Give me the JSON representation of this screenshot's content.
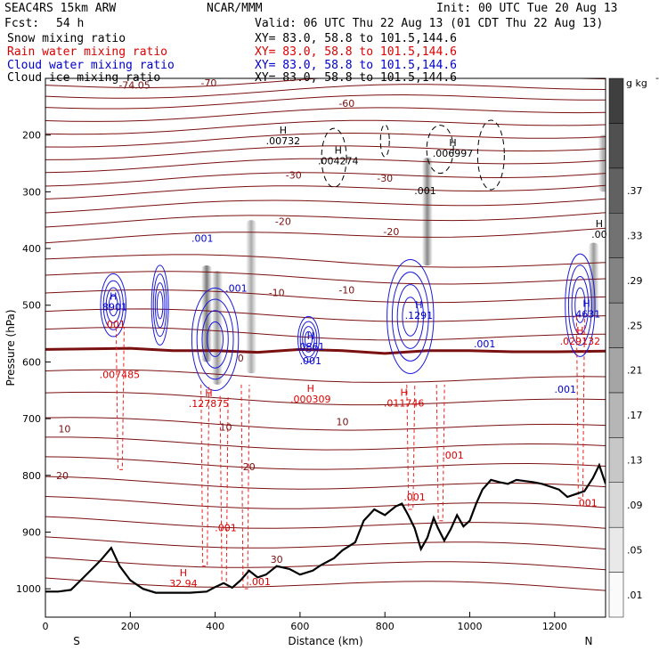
{
  "header": {
    "model": "SEAC4RS 15km ARW",
    "center": "NCAR/MMM",
    "init": "Init: 00 UTC Tue 20 Aug 13",
    "fcst_label": "Fcst:",
    "fcst_value": "54 h",
    "valid": "Valid: 06 UTC Thu 22 Aug 13 (01 CDT Thu 22 Aug 13)",
    "fields": [
      {
        "name": "Snow mixing ratio",
        "xy": "XY=  83.0, 58.8 to 101.5,144.6",
        "color": "#000000"
      },
      {
        "name": "Rain water mixing ratio",
        "xy": "XY=  83.0, 58.8 to 101.5,144.6",
        "color": "#dd0000"
      },
      {
        "name": "Cloud water mixing ratio",
        "xy": "XY=  83.0, 58.8 to 101.5,144.6",
        "color": "#0000cc"
      },
      {
        "name": "Cloud ice mixing ratio",
        "xy": "XY=  83.0, 58.8 to 101.5,144.6",
        "color": "#000000"
      }
    ]
  },
  "chart_data": {
    "type": "cross-section",
    "xlabel": "Distance (km)",
    "ylabel": "Pressure (hPa)",
    "xlim": [
      0,
      1320
    ],
    "ylim": [
      1050,
      100
    ],
    "xticks": [
      0,
      200,
      400,
      600,
      800,
      1000,
      1200
    ],
    "yticks": [
      1000,
      900,
      800,
      700,
      600,
      500,
      400,
      300,
      200
    ],
    "x_end_labels": {
      "left": "S",
      "right": "N"
    },
    "colorbar": {
      "unit": "g kg",
      "unit_exp": "-1",
      "ticks": [
        ".01",
        ".05",
        ".09",
        ".13",
        ".17",
        ".21",
        ".25",
        ".29",
        ".33",
        ".37"
      ]
    },
    "colors": {
      "theta": "#7a1010",
      "rain": "#ee2020",
      "cloud": "#1a1add",
      "ice": "#000000",
      "terrain": "#000000"
    },
    "temperature_labels": [
      {
        "text": "-74.05",
        "x": 210,
        "p": 112
      },
      {
        "text": "-70",
        "x": 385,
        "p": 108
      },
      {
        "text": "-60",
        "x": 710,
        "p": 144
      },
      {
        "text": "-30",
        "x": 585,
        "p": 270
      },
      {
        "text": "-30",
        "x": 800,
        "p": 276
      },
      {
        "text": "-20",
        "x": 560,
        "p": 352
      },
      {
        "text": "-20",
        "x": 815,
        "p": 370
      },
      {
        "text": "-10",
        "x": 545,
        "p": 478
      },
      {
        "text": "-10",
        "x": 710,
        "p": 473
      },
      {
        "text": "0",
        "x": 460,
        "p": 593
      },
      {
        "text": "10",
        "x": 45,
        "p": 718
      },
      {
        "text": "10",
        "x": 425,
        "p": 715
      },
      {
        "text": "10",
        "x": 700,
        "p": 705
      },
      {
        "text": "20",
        "x": 40,
        "p": 800
      },
      {
        "text": "20",
        "x": 480,
        "p": 785
      },
      {
        "text": "30",
        "x": 545,
        "p": 948
      }
    ],
    "extrema_labels": [
      {
        "symbol": "H",
        "value": ".00732",
        "x": 560,
        "p": 210,
        "color": "#000000"
      },
      {
        "symbol": "H",
        "value": ".004274",
        "x": 690,
        "p": 245,
        "color": "#000000"
      },
      {
        "symbol": "H",
        "value": ".006997",
        "x": 960,
        "p": 232,
        "color": "#000000"
      },
      {
        "symbol": "",
        "value": ".001",
        "x": 895,
        "p": 298,
        "color": "#000000"
      },
      {
        "symbol": "H",
        "value": ".00",
        "x": 1305,
        "p": 375,
        "color": "#000000"
      },
      {
        "symbol": "",
        "value": ".001",
        "x": 370,
        "p": 382,
        "color": "#0000cc"
      },
      {
        "symbol": "",
        "value": ".001",
        "x": 450,
        "p": 470,
        "color": "#0000cc"
      },
      {
        "symbol": "H",
        "value": ".8901",
        "x": 160,
        "p": 503,
        "color": "#0000cc"
      },
      {
        "symbol": "H",
        "value": ".0861",
        "x": 625,
        "p": 573,
        "color": "#0000cc"
      },
      {
        "symbol": "H",
        "value": ".1291",
        "x": 880,
        "p": 518,
        "color": "#0000cc"
      },
      {
        "symbol": "",
        "value": ".001",
        "x": 1035,
        "p": 568,
        "color": "#0000cc"
      },
      {
        "symbol": "",
        "value": ".001",
        "x": 625,
        "p": 598,
        "color": "#0000cc"
      },
      {
        "symbol": "H",
        "value": ".4631",
        "x": 1275,
        "p": 515,
        "color": "#0000cc"
      },
      {
        "symbol": "",
        "value": ".001",
        "x": 1225,
        "p": 648,
        "color": "#0000cc"
      },
      {
        "symbol": "",
        "value": ".001",
        "x": 163,
        "p": 533,
        "color": "#dd0000"
      },
      {
        "symbol": "",
        "value": ".007485",
        "x": 175,
        "p": 622,
        "color": "#dd0000"
      },
      {
        "symbol": "H",
        "value": ".127875",
        "x": 385,
        "p": 673,
        "color": "#dd0000"
      },
      {
        "symbol": "H",
        "value": ".000309",
        "x": 625,
        "p": 665,
        "color": "#dd0000"
      },
      {
        "symbol": "H",
        "value": ".011746",
        "x": 845,
        "p": 672,
        "color": "#dd0000"
      },
      {
        "symbol": "",
        "value": ".001",
        "x": 960,
        "p": 764,
        "color": "#dd0000"
      },
      {
        "symbol": "",
        "value": ".001",
        "x": 870,
        "p": 838,
        "color": "#dd0000"
      },
      {
        "symbol": "H",
        "value": ".029132",
        "x": 1260,
        "p": 563,
        "color": "#dd0000"
      },
      {
        "symbol": "",
        "value": ".001",
        "x": 1275,
        "p": 848,
        "color": "#dd0000"
      },
      {
        "symbol": "",
        "value": ".001",
        "x": 425,
        "p": 892,
        "color": "#dd0000"
      },
      {
        "symbol": "",
        "value": ".001",
        "x": 505,
        "p": 987,
        "color": "#dd0000"
      },
      {
        "symbol": "H",
        "value": "32.94",
        "x": 325,
        "p": 990,
        "color": "#dd0000"
      }
    ],
    "snow_columns": [
      {
        "x": 380,
        "p_top": 430,
        "p_bot": 600,
        "intensity": 0.8
      },
      {
        "x": 405,
        "p_top": 440,
        "p_bot": 640,
        "intensity": 0.6
      },
      {
        "x": 485,
        "p_top": 350,
        "p_bot": 620,
        "intensity": 0.5
      },
      {
        "x": 900,
        "p_top": 240,
        "p_bot": 430,
        "intensity": 0.7
      },
      {
        "x": 1292,
        "p_top": 390,
        "p_bot": 520,
        "intensity": 0.6
      },
      {
        "x": 1315,
        "p_top": 200,
        "p_bot": 300,
        "intensity": 0.5
      }
    ],
    "terrain_surface": [
      [
        0,
        1005
      ],
      [
        30,
        1005
      ],
      [
        60,
        1002
      ],
      [
        90,
        980
      ],
      [
        130,
        950
      ],
      [
        155,
        928
      ],
      [
        175,
        960
      ],
      [
        200,
        985
      ],
      [
        230,
        1000
      ],
      [
        260,
        1007
      ],
      [
        300,
        1007
      ],
      [
        340,
        1007
      ],
      [
        380,
        1005
      ],
      [
        400,
        997
      ],
      [
        420,
        990
      ],
      [
        440,
        998
      ],
      [
        460,
        985
      ],
      [
        480,
        968
      ],
      [
        500,
        980
      ],
      [
        520,
        975
      ],
      [
        545,
        960
      ],
      [
        575,
        965
      ],
      [
        600,
        975
      ],
      [
        630,
        968
      ],
      [
        650,
        958
      ],
      [
        680,
        946
      ],
      [
        700,
        932
      ],
      [
        730,
        918
      ],
      [
        750,
        880
      ],
      [
        775,
        860
      ],
      [
        800,
        870
      ],
      [
        825,
        855
      ],
      [
        840,
        850
      ],
      [
        855,
        870
      ],
      [
        870,
        893
      ],
      [
        885,
        930
      ],
      [
        900,
        910
      ],
      [
        915,
        875
      ],
      [
        925,
        893
      ],
      [
        940,
        915
      ],
      [
        955,
        895
      ],
      [
        970,
        870
      ],
      [
        985,
        890
      ],
      [
        1000,
        880
      ],
      [
        1015,
        850
      ],
      [
        1030,
        825
      ],
      [
        1050,
        808
      ],
      [
        1070,
        812
      ],
      [
        1090,
        815
      ],
      [
        1110,
        808
      ],
      [
        1130,
        810
      ],
      [
        1150,
        812
      ],
      [
        1170,
        815
      ],
      [
        1190,
        820
      ],
      [
        1210,
        825
      ],
      [
        1230,
        838
      ],
      [
        1250,
        833
      ],
      [
        1270,
        828
      ],
      [
        1290,
        805
      ],
      [
        1305,
        782
      ],
      [
        1320,
        815
      ]
    ],
    "freezing_line": [
      [
        0,
        578
      ],
      [
        200,
        576
      ],
      [
        300,
        580
      ],
      [
        400,
        580
      ],
      [
        500,
        583
      ],
      [
        600,
        578
      ],
      [
        700,
        580
      ],
      [
        800,
        585
      ],
      [
        900,
        580
      ],
      [
        1000,
        580
      ],
      [
        1100,
        582
      ],
      [
        1200,
        582
      ],
      [
        1320,
        581
      ]
    ]
  }
}
